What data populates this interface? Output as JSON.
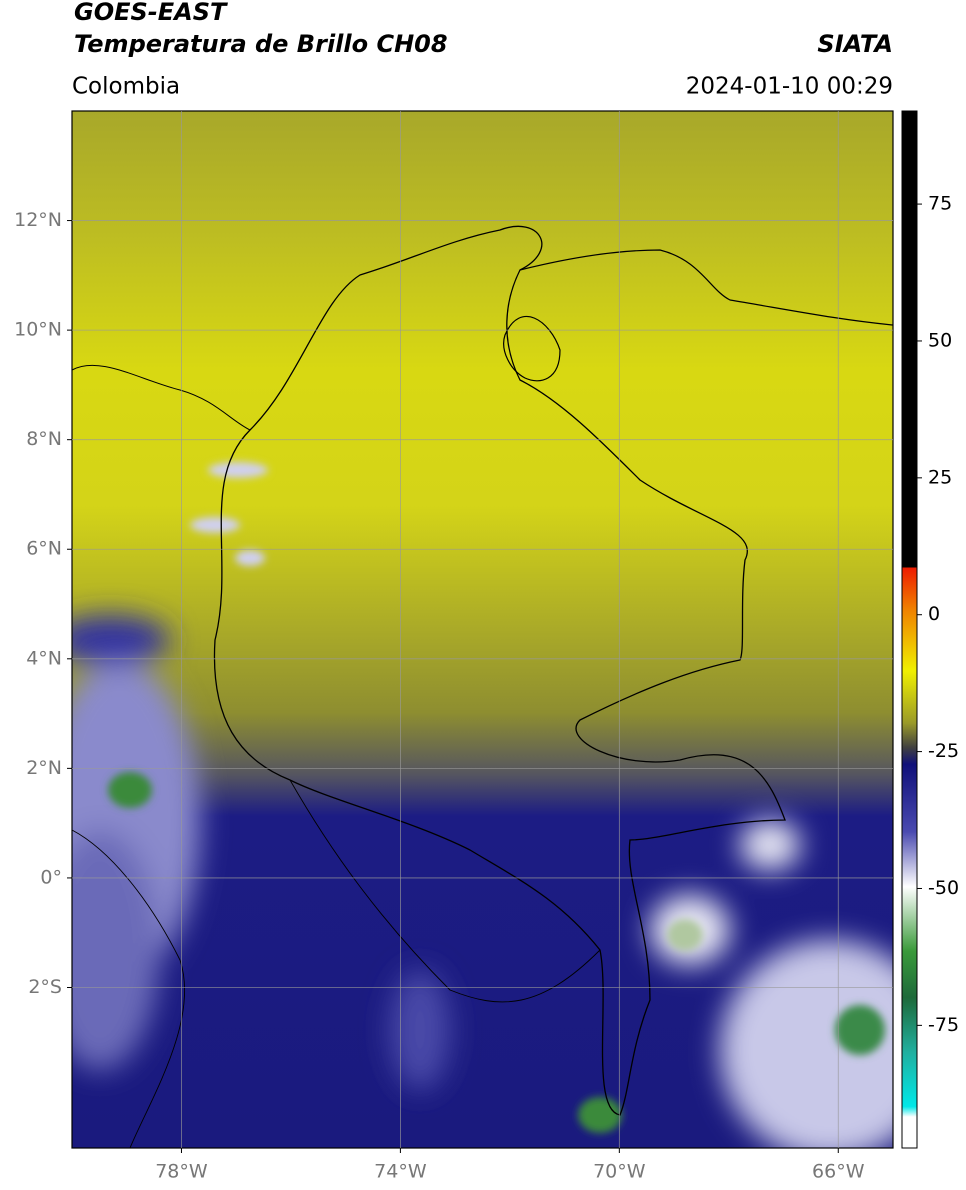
{
  "header": {
    "satellite": "GOES-EAST",
    "product": "Temperatura de Brillo CH08",
    "source": "SIATA",
    "region": "Colombia",
    "datetime": "2024-01-10 00:29"
  },
  "map": {
    "xlim": [
      -80,
      -65
    ],
    "ylim": [
      -4.93,
      14
    ],
    "lat_ticks": [
      {
        "value": 12,
        "label": "12°N"
      },
      {
        "value": 10,
        "label": "10°N"
      },
      {
        "value": 8,
        "label": "8°N"
      },
      {
        "value": 6,
        "label": "6°N"
      },
      {
        "value": 4,
        "label": "4°N"
      },
      {
        "value": 2,
        "label": "2°N"
      },
      {
        "value": 0,
        "label": "0°"
      },
      {
        "value": -2,
        "label": "2°S"
      }
    ],
    "lon_ticks": [
      {
        "value": -78,
        "label": "78°W"
      },
      {
        "value": -74,
        "label": "74°W"
      },
      {
        "value": -70,
        "label": "70°W"
      },
      {
        "value": -66,
        "label": "66°W"
      }
    ]
  },
  "colorbar": {
    "clim": [
      -97.4,
      92
    ],
    "ticks": [
      75,
      50,
      25,
      0,
      -25,
      -50,
      -75
    ]
  }
}
